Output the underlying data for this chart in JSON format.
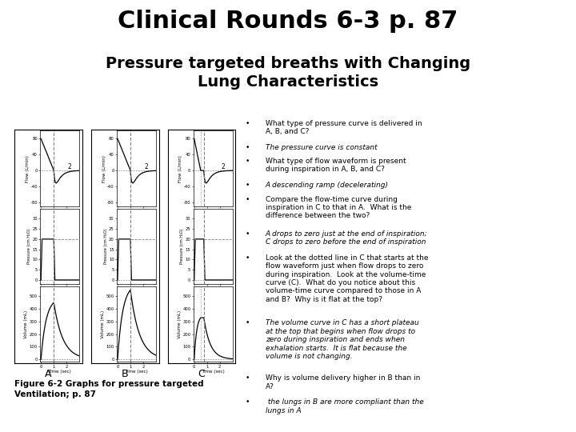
{
  "title": "Clinical Rounds 6-3 p. 87",
  "subtitle": "Pressure targeted breaths with Changing\nLung Characteristics",
  "title_fontsize": 22,
  "subtitle_fontsize": 14,
  "bg_color": "#ffffff",
  "bullet_points": [
    [
      "normal",
      "What type of pressure curve is delivered in\nA, B, and C?"
    ],
    [
      "italic",
      "The pressure curve is constant"
    ],
    [
      "normal",
      "What type of flow waveform is present\nduring inspiration in A, B, and C?"
    ],
    [
      "italic",
      "A descending ramp (decelerating)"
    ],
    [
      "normal",
      "Compare the flow-time curve during\ninspiration in C to that in A.  What is the\ndifference between the two?"
    ],
    [
      "italic",
      "A drops to zero just at the end of inspiration;\nC drops to zero before the end of inspiration"
    ],
    [
      "normal",
      "Look at the dotted line in C that starts at the\nflow waveform just when flow drops to zero\nduring inspiration.  Look at the volume-time\ncurve (C).  What do you notice about this\nvolume-time curve compared to those in A\nand B?  Why is it flat at the top?"
    ],
    [
      "italic",
      "The volume curve in C has a short plateau\nat the top that begins when flow drops to\nzero during inspiration and ends when\nexhalation starts.  It is flat because the\nvolume is not changing."
    ],
    [
      "normal",
      "Why is volume delivery higher in B than in\nA?"
    ],
    [
      "italic",
      " the lungs in B are more compliant than the\nlungs in A"
    ]
  ],
  "fig_caption": "Figure 6-2 Graphs for pressure targeted\nVentilation; p. 87",
  "panel_labels": [
    "A",
    "B",
    "C"
  ]
}
